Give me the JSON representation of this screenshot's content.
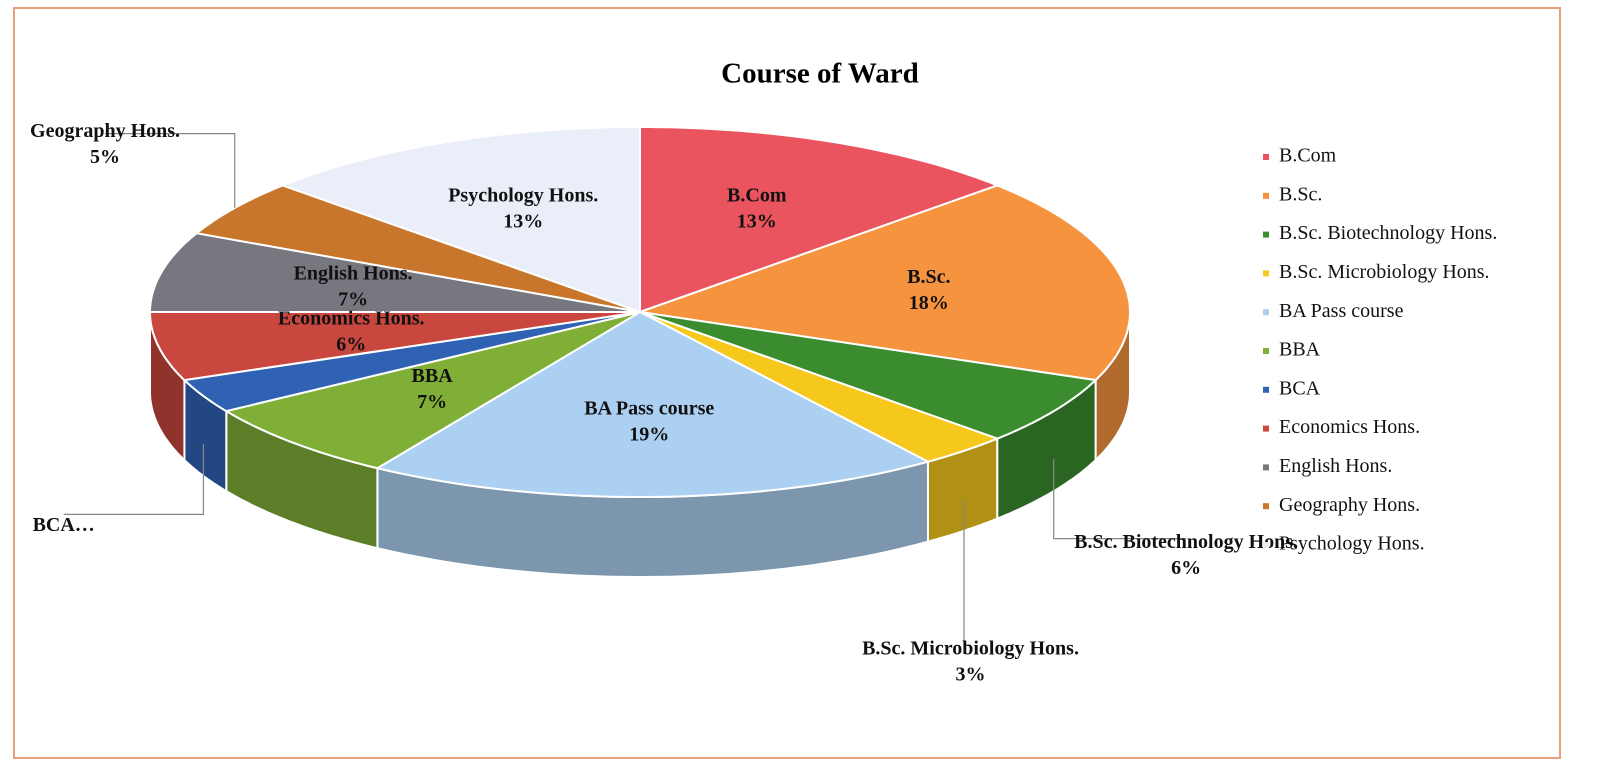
{
  "chart_data": {
    "type": "pie3d",
    "title": "Course of Ward",
    "categories": [
      "B.Com",
      "B.Sc.",
      "B.Sc. Biotechnology Hons.",
      "B.Sc. Microbiology Hons.",
      "BA Pass course",
      "BBA",
      "BCA",
      "Economics Hons.",
      "English Hons.",
      "Geography Hons.",
      "Psychology Hons."
    ],
    "values": [
      13,
      18,
      6,
      3,
      19,
      7,
      3,
      6,
      7,
      5,
      13
    ],
    "data_labels": [
      [
        "B.Com",
        "13%"
      ],
      [
        "B.Sc.",
        "18%"
      ],
      [
        "B.Sc. Biotechnology Hons.",
        "6%"
      ],
      [
        "B.Sc. Microbiology Hons.",
        "3%"
      ],
      [
        "BA Pass course",
        "19%"
      ],
      [
        "BBA",
        "7%"
      ],
      [
        "BCA…"
      ],
      [
        "Economics Hons.",
        "6%"
      ],
      [
        "English Hons.",
        "7%"
      ],
      [
        "Geography Hons.",
        "5%"
      ],
      [
        "Psychology Hons.",
        "13%"
      ]
    ],
    "colors": [
      "#e9545e",
      "#f5933f",
      "#3b8c2f",
      "#f6c81c",
      "#acd0f2",
      "#80af37",
      "#3062b4",
      "#c9473e",
      "#77777f",
      "#c8762b",
      "#e9eef8"
    ],
    "legend": "right"
  }
}
